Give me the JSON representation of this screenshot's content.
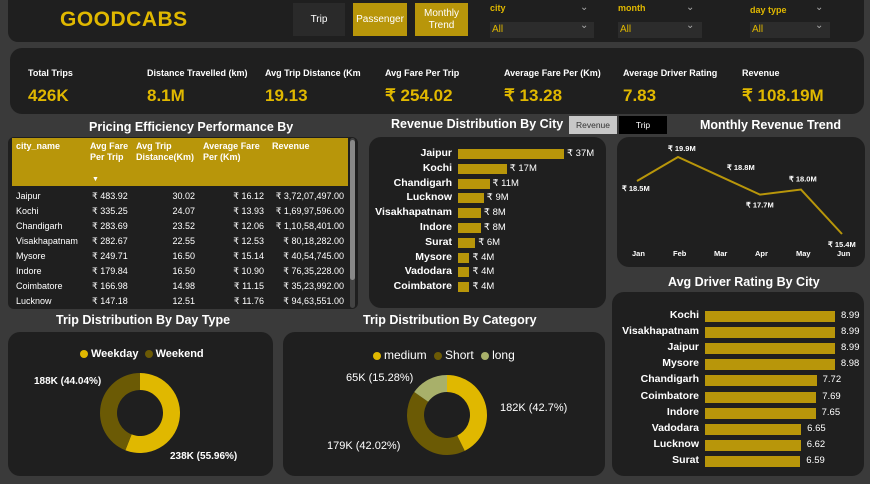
{
  "header": {
    "logo": "GOODCABS",
    "nav": [
      {
        "label": "Trip",
        "active": false
      },
      {
        "label": "Passenger",
        "active": true
      },
      {
        "label": "Monthly Trend",
        "active": true
      }
    ],
    "slicers": [
      {
        "label": "city",
        "value": "All"
      },
      {
        "label": "month",
        "value": "All"
      },
      {
        "label": "day type",
        "value": "All"
      }
    ]
  },
  "kpis": [
    {
      "label": "Total Trips",
      "value": "426K"
    },
    {
      "label": "Distance Travelled (km)",
      "value": "8.1M"
    },
    {
      "label": "Avg Trip Distance (Km",
      "value": "19.13"
    },
    {
      "label": "Avg Fare Per Trip",
      "value": "₹ 254.02"
    },
    {
      "label": "Average Fare Per (Km)",
      "value": "₹ 13.28"
    },
    {
      "label": "Average Driver Rating",
      "value": "7.83"
    },
    {
      "label": "Revenue",
      "value": "₹ 108.19M"
    }
  ],
  "pricing": {
    "title": "Pricing Efficiency Performance By",
    "headers": [
      "city_name",
      "Avg Fare Per Trip",
      "Avg Trip Distance(Km)",
      "Average Fare Per (Km)",
      "Revenue"
    ],
    "rows": [
      [
        "Jaipur",
        "₹ 483.92",
        "30.02",
        "₹ 16.12",
        "₹ 3,72,07,497.00"
      ],
      [
        "Kochi",
        "₹ 335.25",
        "24.07",
        "₹ 13.93",
        "₹ 1,69,97,596.00"
      ],
      [
        "Chandigarh",
        "₹ 283.69",
        "23.52",
        "₹ 12.06",
        "₹ 1,10,58,401.00"
      ],
      [
        "Visakhapatnam",
        "₹ 282.67",
        "22.55",
        "₹ 12.53",
        "₹ 80,18,282.00"
      ],
      [
        "Mysore",
        "₹ 249.71",
        "16.50",
        "₹ 15.14",
        "₹ 40,54,745.00"
      ],
      [
        "Indore",
        "₹ 179.84",
        "16.50",
        "₹ 10.90",
        "₹ 76,35,228.00"
      ],
      [
        "Coimbatore",
        "₹ 166.98",
        "14.98",
        "₹ 11.15",
        "₹ 35,23,992.00"
      ],
      [
        "Lucknow",
        "₹ 147.18",
        "12.51",
        "₹ 11.76",
        "₹ 94,63,551.00"
      ]
    ]
  },
  "revenue_dist": {
    "title": "Revenue Distribution By City",
    "toggle": [
      "Revenue",
      "Trip"
    ],
    "cities": [
      "Jaipur",
      "Kochi",
      "Chandigarh",
      "Lucknow",
      "Visakhapatnam",
      "Indore",
      "Surat",
      "Mysore",
      "Vadodara",
      "Coimbatore"
    ],
    "labels": [
      "₹ 37M",
      "₹ 17M",
      "₹ 11M",
      "₹ 9M",
      "₹ 8M",
      "₹ 8M",
      "₹ 6M",
      "₹ 4M",
      "₹ 4M",
      "₹ 4M"
    ],
    "values": [
      37,
      17,
      11,
      9,
      8,
      8,
      6,
      4,
      4,
      4
    ]
  },
  "monthly": {
    "title": "Monthly Revenue Trend",
    "months": [
      "Jan",
      "Feb",
      "Mar",
      "Apr",
      "May",
      "Jun"
    ],
    "labels": [
      "₹ 18.5M",
      "₹ 19.9M",
      "₹ 18.8M",
      "₹ 17.7M",
      "₹ 18.0M",
      "₹ 15.4M"
    ],
    "values": [
      18.5,
      19.9,
      18.8,
      17.7,
      18.0,
      15.4
    ]
  },
  "rating": {
    "title": "Avg Driver Rating By City",
    "cities": [
      "Kochi",
      "Visakhapatnam",
      "Jaipur",
      "Mysore",
      "Chandigarh",
      "Coimbatore",
      "Indore",
      "Vadodara",
      "Lucknow",
      "Surat"
    ],
    "labels": [
      "8.99",
      "8.99",
      "8.99",
      "8.98",
      "7.72",
      "7.69",
      "7.65",
      "6.65",
      "6.62",
      "6.59"
    ],
    "values": [
      8.99,
      8.99,
      8.99,
      8.98,
      7.72,
      7.69,
      7.65,
      6.65,
      6.62,
      6.59
    ]
  },
  "daytype": {
    "title": "Trip Distribution  By Day Type",
    "legend": [
      "Weekday",
      "Weekend"
    ],
    "labels": [
      "238K (55.96%)",
      "188K (44.04%)"
    ],
    "values": [
      55.96,
      44.04
    ],
    "colors": [
      "#e0b800",
      "#6b5a05"
    ]
  },
  "category": {
    "title": "Trip Distribution  By Category",
    "legend": [
      "medium",
      "Short",
      "long"
    ],
    "labels": [
      "182K (42.7%)",
      "179K (42.02%)",
      "65K (15.28%)"
    ],
    "values": [
      42.7,
      42.02,
      15.28
    ],
    "colors": [
      "#e0b800",
      "#6b5a05",
      "#a8b06a"
    ]
  },
  "chart_data": [
    {
      "type": "bar",
      "title": "Revenue Distribution By City",
      "categories": [
        "Jaipur",
        "Kochi",
        "Chandigarh",
        "Lucknow",
        "Visakhapatnam",
        "Indore",
        "Surat",
        "Mysore",
        "Vadodara",
        "Coimbatore"
      ],
      "values": [
        37,
        17,
        11,
        9,
        8,
        8,
        6,
        4,
        4,
        4
      ]
    },
    {
      "type": "line",
      "title": "Monthly Revenue Trend",
      "categories": [
        "Jan",
        "Feb",
        "Mar",
        "Apr",
        "May",
        "Jun"
      ],
      "values": [
        18.5,
        19.9,
        18.8,
        17.7,
        18.0,
        15.4
      ]
    },
    {
      "type": "bar",
      "title": "Avg Driver Rating By City",
      "categories": [
        "Kochi",
        "Visakhapatnam",
        "Jaipur",
        "Mysore",
        "Chandigarh",
        "Coimbatore",
        "Indore",
        "Vadodara",
        "Lucknow",
        "Surat"
      ],
      "values": [
        8.99,
        8.99,
        8.99,
        8.98,
        7.72,
        7.69,
        7.65,
        6.65,
        6.62,
        6.59
      ]
    },
    {
      "type": "pie",
      "title": "Trip Distribution  By Day Type",
      "categories": [
        "Weekday",
        "Weekend"
      ],
      "values": [
        55.96,
        44.04
      ]
    },
    {
      "type": "pie",
      "title": "Trip Distribution  By Category",
      "categories": [
        "medium",
        "Short",
        "long"
      ],
      "values": [
        42.7,
        42.02,
        15.28
      ]
    }
  ]
}
